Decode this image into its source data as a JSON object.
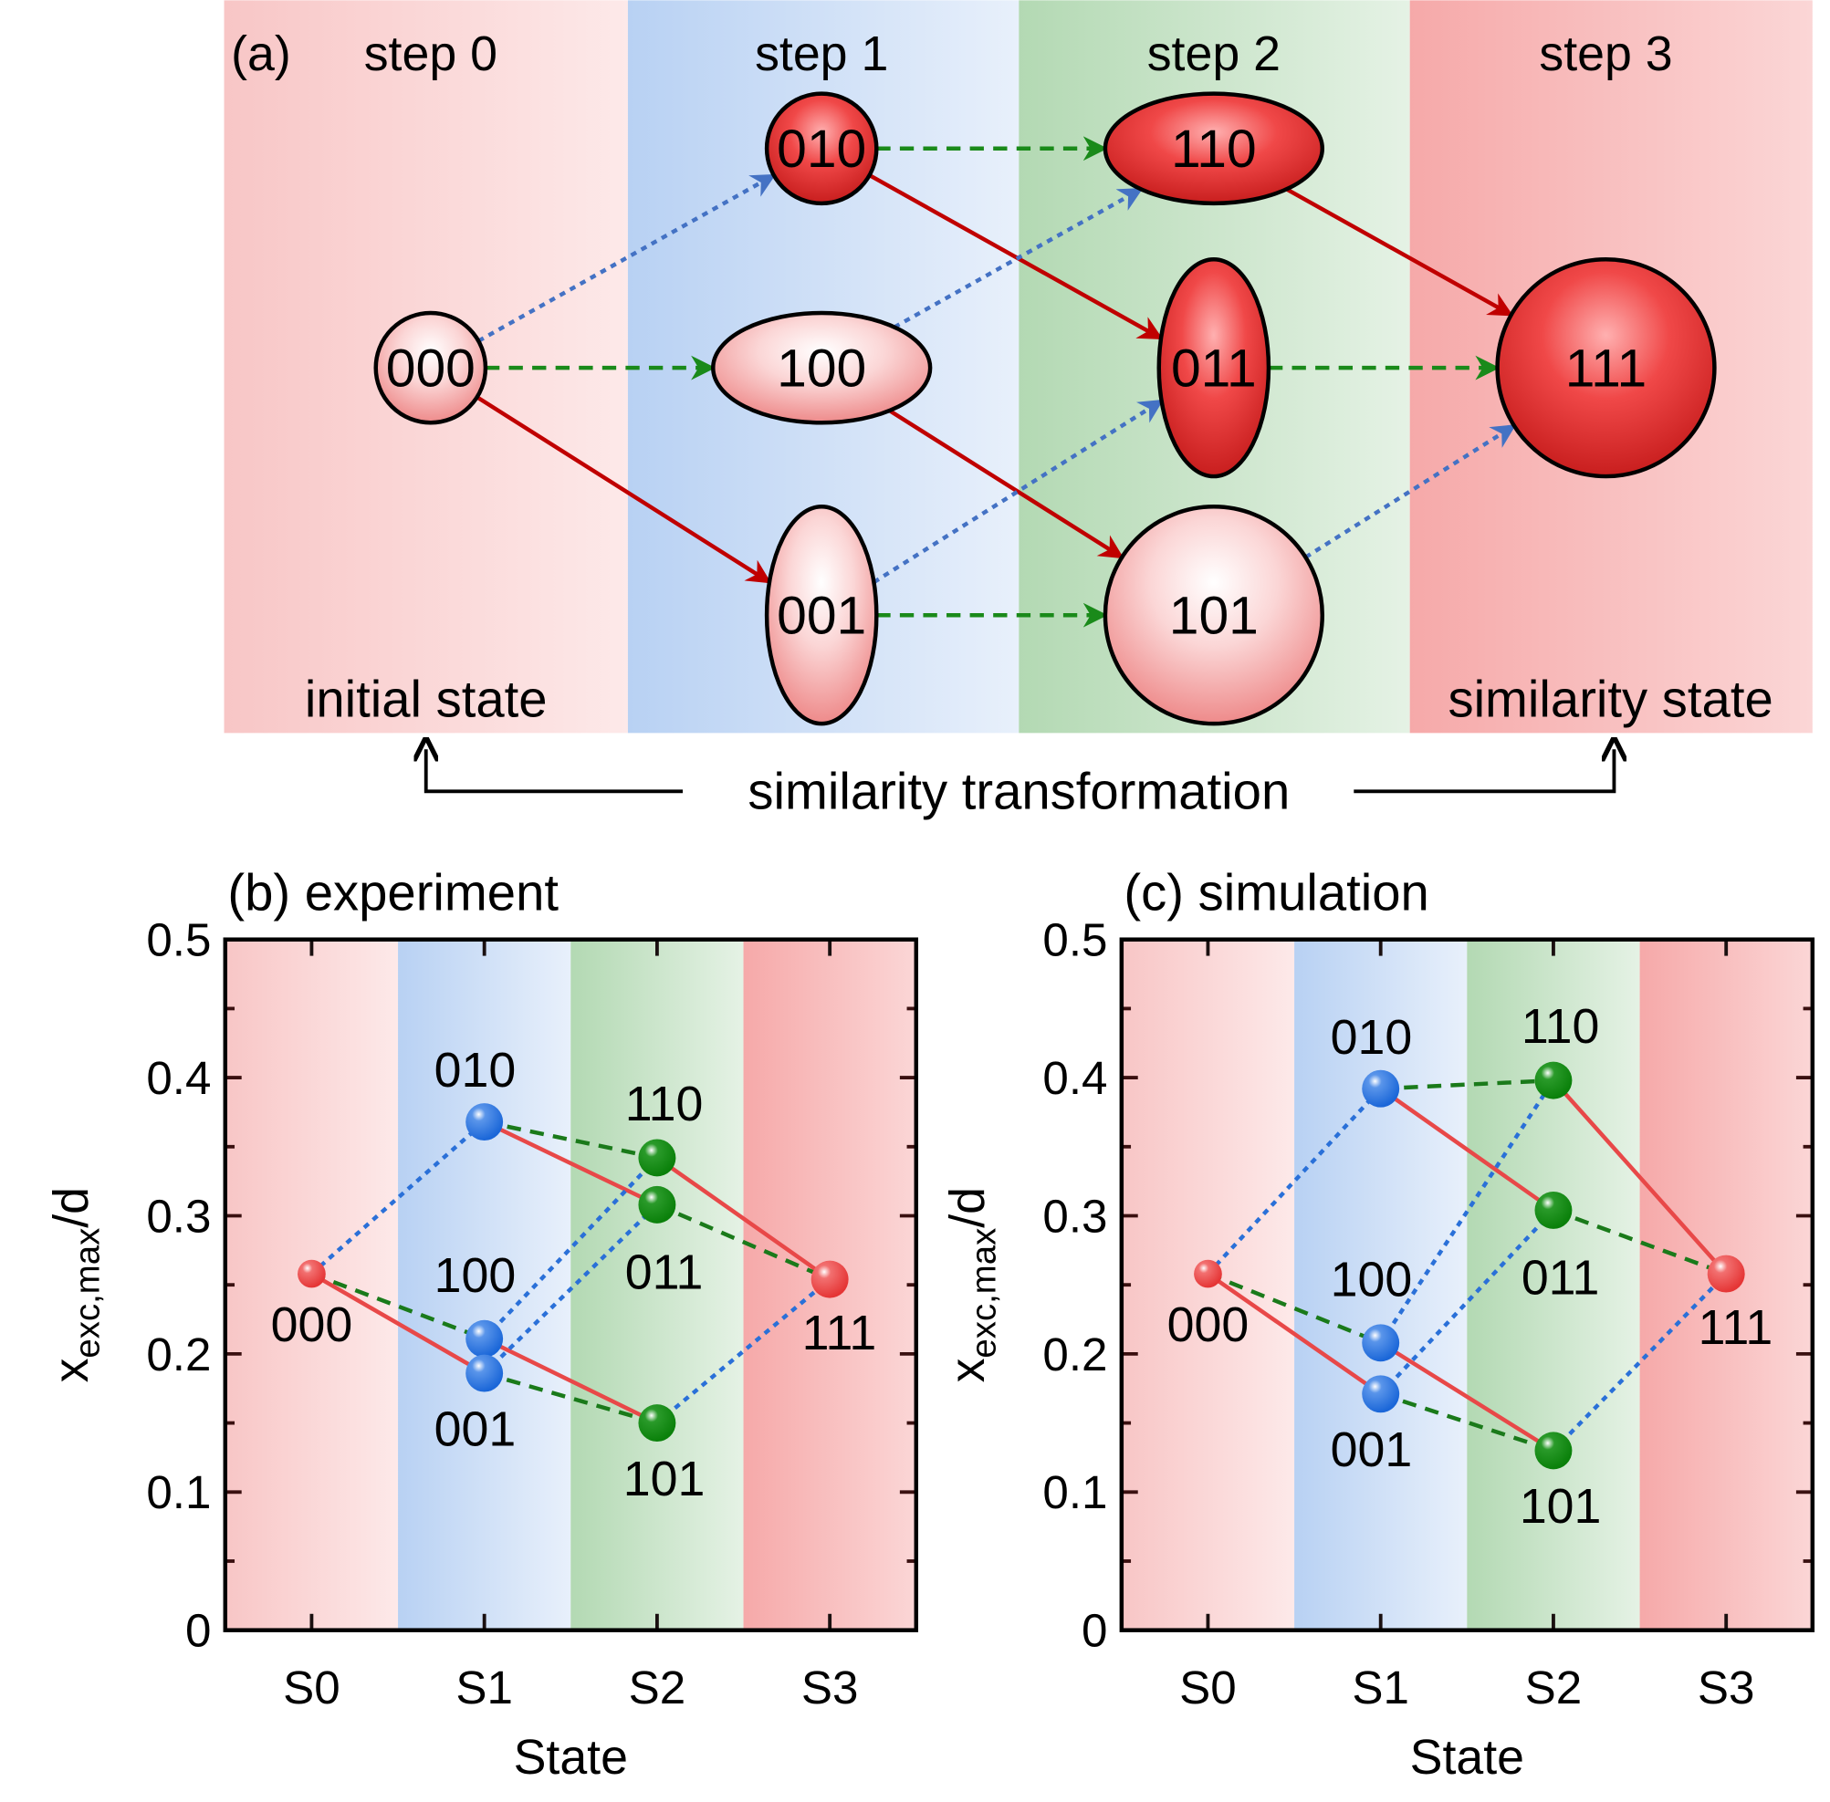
{
  "diagram": {
    "panel_label": "(a)",
    "steps": [
      "step 0",
      "step 1",
      "step 2",
      "step 3"
    ],
    "initial_label": "initial state",
    "final_label": "similarity state",
    "transformation_label": "similarity transformation",
    "nodes": [
      {
        "id": "000",
        "step": 0,
        "row": 1,
        "shape": "circle-small",
        "tone": "light"
      },
      {
        "id": "010",
        "step": 1,
        "row": 0,
        "shape": "circle-small",
        "tone": "dark"
      },
      {
        "id": "100",
        "step": 1,
        "row": 1,
        "shape": "wide",
        "tone": "light"
      },
      {
        "id": "001",
        "step": 1,
        "row": 2,
        "shape": "tall",
        "tone": "light"
      },
      {
        "id": "110",
        "step": 2,
        "row": 0,
        "shape": "wide",
        "tone": "dark"
      },
      {
        "id": "011",
        "step": 2,
        "row": 1,
        "shape": "tall",
        "tone": "dark"
      },
      {
        "id": "101",
        "step": 2,
        "row": 2,
        "shape": "circle-large",
        "tone": "light"
      },
      {
        "id": "111",
        "step": 3,
        "row": 1,
        "shape": "circle-large",
        "tone": "dark"
      }
    ],
    "edges": [
      {
        "from": "000",
        "to": "010",
        "type": "blue-dotted"
      },
      {
        "from": "000",
        "to": "100",
        "type": "green-dashed"
      },
      {
        "from": "000",
        "to": "001",
        "type": "red-solid"
      },
      {
        "from": "010",
        "to": "110",
        "type": "green-dashed"
      },
      {
        "from": "010",
        "to": "011",
        "type": "red-solid"
      },
      {
        "from": "100",
        "to": "110",
        "type": "blue-dotted"
      },
      {
        "from": "100",
        "to": "101",
        "type": "red-solid"
      },
      {
        "from": "001",
        "to": "011",
        "type": "blue-dotted"
      },
      {
        "from": "001",
        "to": "101",
        "type": "green-dashed"
      },
      {
        "from": "110",
        "to": "111",
        "type": "red-solid"
      },
      {
        "from": "011",
        "to": "111",
        "type": "green-dashed"
      },
      {
        "from": "101",
        "to": "111",
        "type": "blue-dotted"
      }
    ],
    "colors": {
      "red-solid": "#c00000",
      "green-dashed": "#1a8a1a",
      "blue-dotted": "#4472c4"
    }
  },
  "chart_data": [
    {
      "type": "scatter",
      "title": "(b) experiment",
      "xlabel": "State",
      "ylabel": "x_exc,max/d",
      "ylabel_main": "x",
      "ylabel_sub": "exc,max",
      "ylabel_tail": "/d",
      "categories": [
        "S0",
        "S1",
        "S2",
        "S3"
      ],
      "ylim": [
        0,
        0.5
      ],
      "yticks": [
        "0",
        "0.1",
        "0.2",
        "0.3",
        "0.4",
        "0.5"
      ],
      "points": [
        {
          "label": "000",
          "x": 0,
          "y": 0.258
        },
        {
          "label": "010",
          "x": 1,
          "y": 0.368
        },
        {
          "label": "100",
          "x": 1,
          "y": 0.211
        },
        {
          "label": "001",
          "x": 1,
          "y": 0.186
        },
        {
          "label": "110",
          "x": 2,
          "y": 0.342
        },
        {
          "label": "011",
          "x": 2,
          "y": 0.308
        },
        {
          "label": "101",
          "x": 2,
          "y": 0.15
        },
        {
          "label": "111",
          "x": 3,
          "y": 0.254
        }
      ]
    },
    {
      "type": "scatter",
      "title": "(c) simulation",
      "xlabel": "State",
      "ylabel": "x_exc,max/d",
      "ylabel_main": "x",
      "ylabel_sub": "exc,max",
      "ylabel_tail": "/d",
      "categories": [
        "S0",
        "S1",
        "S2",
        "S3"
      ],
      "ylim": [
        0,
        0.5
      ],
      "yticks": [
        "0",
        "0.1",
        "0.2",
        "0.3",
        "0.4",
        "0.5"
      ],
      "points": [
        {
          "label": "000",
          "x": 0,
          "y": 0.258
        },
        {
          "label": "010",
          "x": 1,
          "y": 0.392
        },
        {
          "label": "100",
          "x": 1,
          "y": 0.208
        },
        {
          "label": "001",
          "x": 1,
          "y": 0.171
        },
        {
          "label": "110",
          "x": 2,
          "y": 0.398
        },
        {
          "label": "011",
          "x": 2,
          "y": 0.304
        },
        {
          "label": "101",
          "x": 2,
          "y": 0.13
        },
        {
          "label": "111",
          "x": 3,
          "y": 0.258
        }
      ]
    }
  ]
}
